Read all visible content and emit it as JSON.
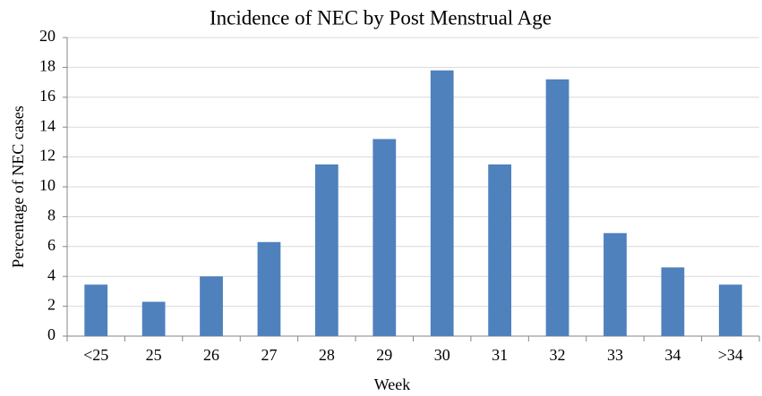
{
  "chart_data": {
    "type": "bar",
    "title": "Incidence of NEC by Post Menstrual Age",
    "x_label": "Week",
    "y_label": "Percentage of NEC cases",
    "categories": [
      "<25",
      "25",
      "26",
      "27",
      "28",
      "29",
      "30",
      "31",
      "32",
      "33",
      "34",
      ">34"
    ],
    "values": [
      3.45,
      2.3,
      4.0,
      6.3,
      11.5,
      13.2,
      17.8,
      11.5,
      17.2,
      6.9,
      4.6,
      3.45
    ],
    "color": "#4f81bd",
    "ylim": [
      0,
      20
    ],
    "yticks": [
      0,
      2,
      4,
      6,
      8,
      10,
      12,
      14,
      16,
      18,
      20
    ],
    "grid": true
  }
}
